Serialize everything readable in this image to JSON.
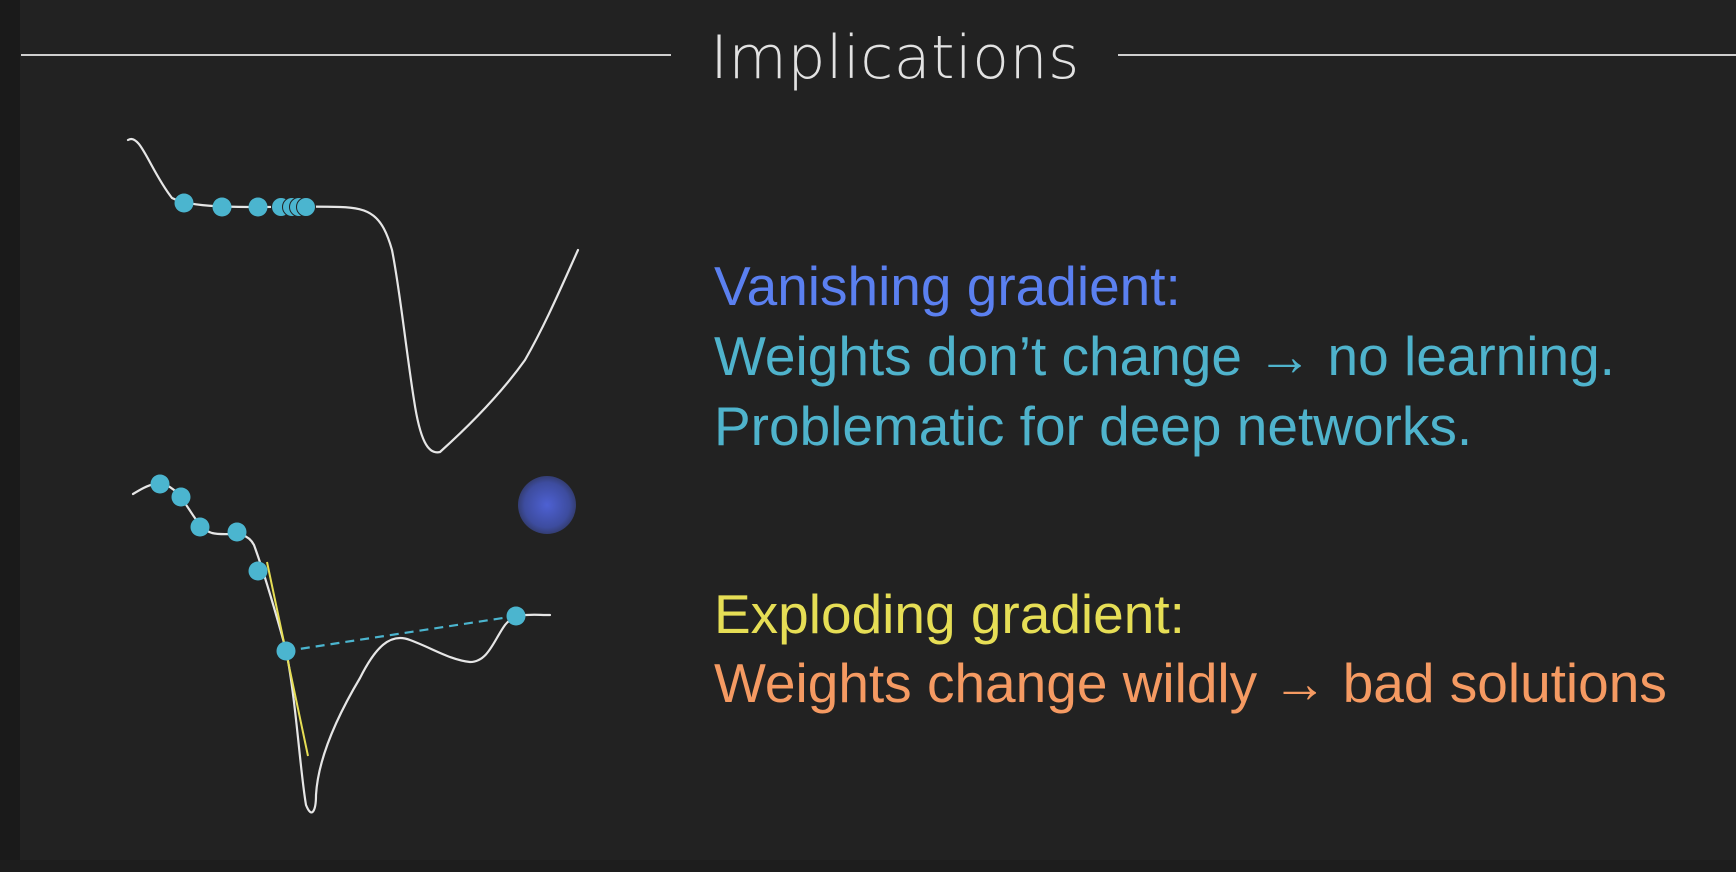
{
  "slide": {
    "title": "Implications",
    "vanishing": {
      "heading": "Vanishing gradient:",
      "line1": "Weights don’t change → no learning.",
      "line2": "Problematic for deep networks."
    },
    "exploding": {
      "heading": "Exploding gradient:",
      "line1": "Weights change wildly → bad solutions"
    }
  },
  "colors": {
    "background": "#222222",
    "title": "#e2e2e2",
    "rule": "#cfcfcf",
    "vanishing_heading": "#5b80f0",
    "vanishing_text": "#4fb3cc",
    "exploding_heading": "#e6de55",
    "exploding_text": "#f59a62",
    "curve": "#e6e6e6",
    "point": "#4bb5cf",
    "tangent": "#e6de55",
    "cursor_halo": "#5064dc"
  },
  "icons": {
    "cursor": "mouse-pointer-icon"
  }
}
